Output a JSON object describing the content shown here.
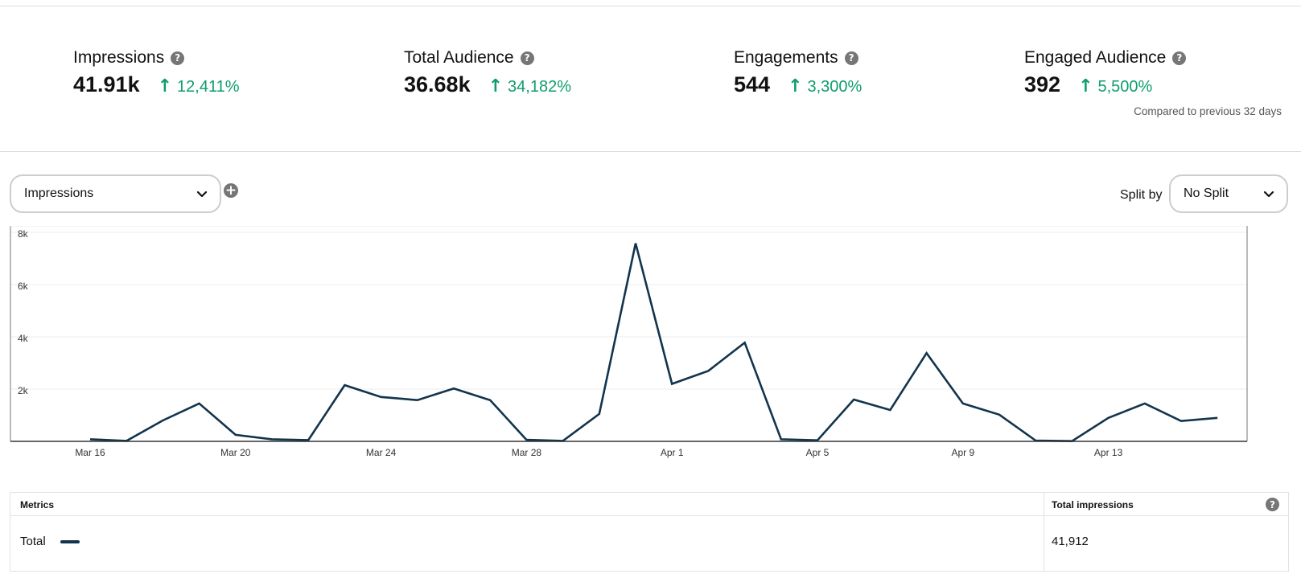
{
  "kpis": [
    {
      "title": "Impressions",
      "value": "41.91k",
      "change": "12,411%"
    },
    {
      "title": "Total Audience",
      "value": "36.68k",
      "change": "34,182%"
    },
    {
      "title": "Engagements",
      "value": "544",
      "change": "3,300%"
    },
    {
      "title": "Engaged Audience",
      "value": "392",
      "change": "5,500%"
    }
  ],
  "compare_note": "Compared to previous 32 days",
  "controls": {
    "metric_select": "Impressions",
    "split_label": "Split by",
    "split_select": "No Split"
  },
  "colors": {
    "accent_positive": "#0f9d6f",
    "line": "#12344d",
    "icon_gray": "#767676"
  },
  "icons": {
    "kpi_help": "question-circle-icon",
    "add_metric": "plus-circle-icon",
    "dropdown": "chevron-down-icon",
    "trend_up": "arrow-up-icon"
  },
  "chart_data": {
    "type": "line",
    "title": "",
    "xlabel": "",
    "ylabel": "",
    "ylim": [
      0,
      8000
    ],
    "yticks": [
      "8k",
      "6k",
      "4k",
      "2k"
    ],
    "ytick_values": [
      8000,
      6000,
      4000,
      2000
    ],
    "grid": true,
    "x": [
      "Mar 16",
      "Mar 17",
      "Mar 18",
      "Mar 19",
      "Mar 20",
      "Mar 21",
      "Mar 22",
      "Mar 23",
      "Mar 24",
      "Mar 25",
      "Mar 26",
      "Mar 27",
      "Mar 28",
      "Mar 29",
      "Mar 30",
      "Mar 31",
      "Apr 1",
      "Apr 2",
      "Apr 3",
      "Apr 4",
      "Apr 5",
      "Apr 6",
      "Apr 7",
      "Apr 8",
      "Apr 9",
      "Apr 10",
      "Apr 11",
      "Apr 12",
      "Apr 13",
      "Apr 14",
      "Apr 15",
      "Apr 16"
    ],
    "xtick_labels": [
      "Mar 16",
      "Mar 20",
      "Mar 24",
      "Mar 28",
      "Apr 1",
      "Apr 5",
      "Apr 9",
      "Apr 13"
    ],
    "xtick_indices": [
      0,
      4,
      8,
      12,
      16,
      20,
      24,
      28
    ],
    "series": [
      {
        "values": [
          80,
          20,
          800,
          1450,
          250,
          80,
          50,
          2150,
          1700,
          1580,
          2020,
          1580,
          60,
          20,
          1050,
          7580,
          2200,
          2700,
          3780,
          80,
          40,
          1600,
          1200,
          3380,
          1450,
          1020,
          30,
          10,
          900,
          1450,
          780,
          900
        ]
      }
    ]
  },
  "metrics_table": {
    "headers": [
      "Metrics",
      "Total impressions"
    ],
    "rows": [
      {
        "label": "Total",
        "value": "41,912"
      }
    ]
  }
}
